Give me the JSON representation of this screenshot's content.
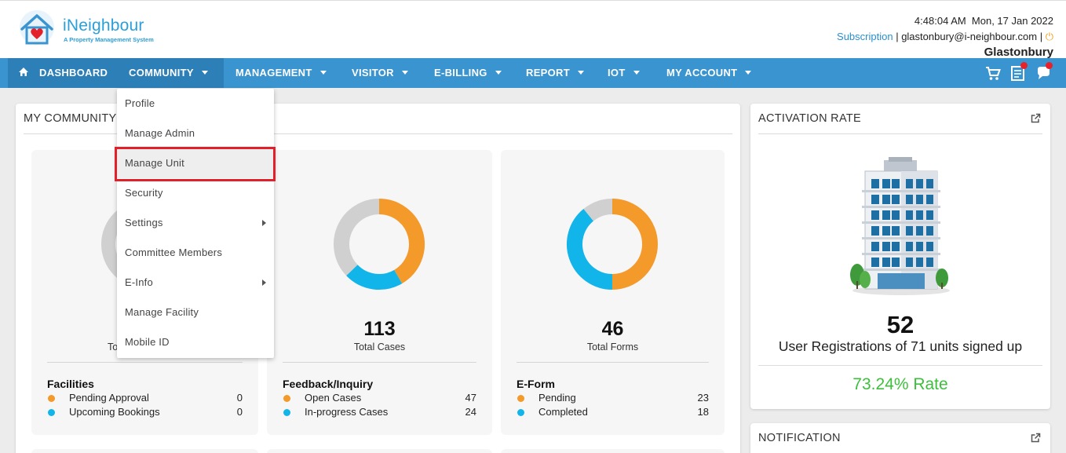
{
  "brand": {
    "name": "iNeighbour",
    "tagline": "A Property Management System"
  },
  "header": {
    "datetime": "4:48:04 AM  Mon, 17 Jan 2022",
    "subscription_label": "Subscription",
    "separator": " | ",
    "email": "glastonbury@i-neighbour.com",
    "community_name": "Glastonbury"
  },
  "nav": {
    "items": [
      {
        "label": "DASHBOARD"
      },
      {
        "label": "COMMUNITY"
      },
      {
        "label": "MANAGEMENT"
      },
      {
        "label": "VISITOR"
      },
      {
        "label": "E-BILLING"
      },
      {
        "label": "REPORT"
      },
      {
        "label": "IOT"
      },
      {
        "label": "MY ACCOUNT"
      }
    ],
    "icons": [
      "cart-icon",
      "document-icon",
      "chat-icon"
    ]
  },
  "community_menu": {
    "items": [
      {
        "label": "Profile"
      },
      {
        "label": "Manage Admin"
      },
      {
        "label": "Manage Unit"
      },
      {
        "label": "Security"
      },
      {
        "label": "Settings"
      },
      {
        "label": "Committee Members"
      },
      {
        "label": "E-Info"
      },
      {
        "label": "Manage Facility"
      },
      {
        "label": "Mobile ID"
      }
    ]
  },
  "my_community": {
    "title": "MY COMMUNITY",
    "cards": [
      {
        "caption": "To",
        "section": "Facilities",
        "rows": [
          {
            "label": "Pending Approval",
            "value": "0",
            "color": "#f39a2b"
          },
          {
            "label": "Upcoming Bookings",
            "value": "0",
            "color": "#12b5ea"
          }
        ]
      },
      {
        "total": "113",
        "caption": "Total Cases",
        "section": "Feedback/Inquiry",
        "rows": [
          {
            "label": "Open Cases",
            "value": "47",
            "color": "#f39a2b"
          },
          {
            "label": "In-progress Cases",
            "value": "24",
            "color": "#12b5ea"
          }
        ]
      },
      {
        "total": "46",
        "caption": "Total Forms",
        "section": "E-Form",
        "rows": [
          {
            "label": "Pending",
            "value": "23",
            "color": "#f39a2b"
          },
          {
            "label": "Completed",
            "value": "18",
            "color": "#12b5ea"
          }
        ]
      }
    ]
  },
  "chart_data": [
    {
      "type": "pie",
      "categories": [
        "Open Cases",
        "In-progress Cases",
        "Other"
      ],
      "values": [
        47,
        24,
        42
      ],
      "colors": [
        "#f39a2b",
        "#12b5ea",
        "#d0d0d0"
      ]
    },
    {
      "type": "pie",
      "categories": [
        "Pending",
        "Completed",
        "Other"
      ],
      "values": [
        23,
        18,
        5
      ],
      "colors": [
        "#f39a2b",
        "#12b5ea",
        "#d0d0d0"
      ]
    }
  ],
  "activation": {
    "title": "ACTIVATION RATE",
    "registrations": "52",
    "caption": "User Registrations of 71 units signed up",
    "rate": "73.24% Rate"
  },
  "notification": {
    "title": "NOTIFICATION"
  },
  "colors": {
    "nav": "#3a94cf",
    "accent_orange": "#f39a2b",
    "accent_blue": "#12b5ea",
    "highlight": "#e3202a",
    "rate_green": "#3dbf3d"
  }
}
